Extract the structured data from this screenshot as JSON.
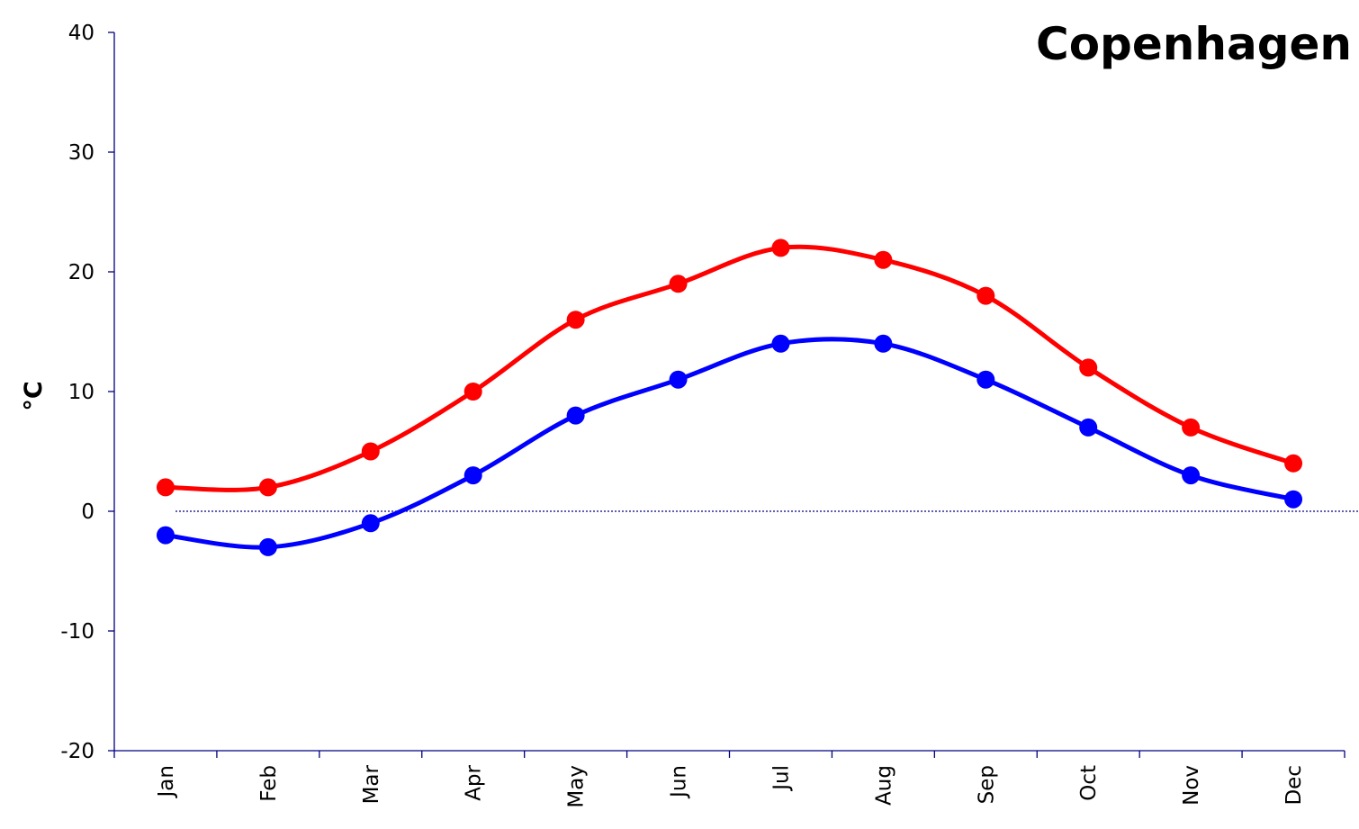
{
  "chart_data": {
    "type": "line",
    "title": "Copenhagen",
    "xlabel": "",
    "ylabel": "°C",
    "categories": [
      "Jan",
      "Feb",
      "Mar",
      "Apr",
      "May",
      "Jun",
      "Jul",
      "Aug",
      "Sep",
      "Oct",
      "Nov",
      "Dec"
    ],
    "series": [
      {
        "values": [
          2,
          2,
          5,
          10,
          16,
          19,
          22,
          21,
          18,
          12,
          7,
          4
        ],
        "color": "#ff0000"
      },
      {
        "values": [
          -2,
          -3,
          -1,
          3,
          8,
          11,
          14,
          14,
          11,
          7,
          3,
          1
        ],
        "color": "#0000ff"
      }
    ],
    "ylim": [
      -20,
      40
    ],
    "yticks": [
      "-20",
      "-10",
      "0",
      "10",
      "20",
      "30",
      "40"
    ],
    "zero_reference_line": true,
    "grid": false,
    "legend": "none"
  }
}
